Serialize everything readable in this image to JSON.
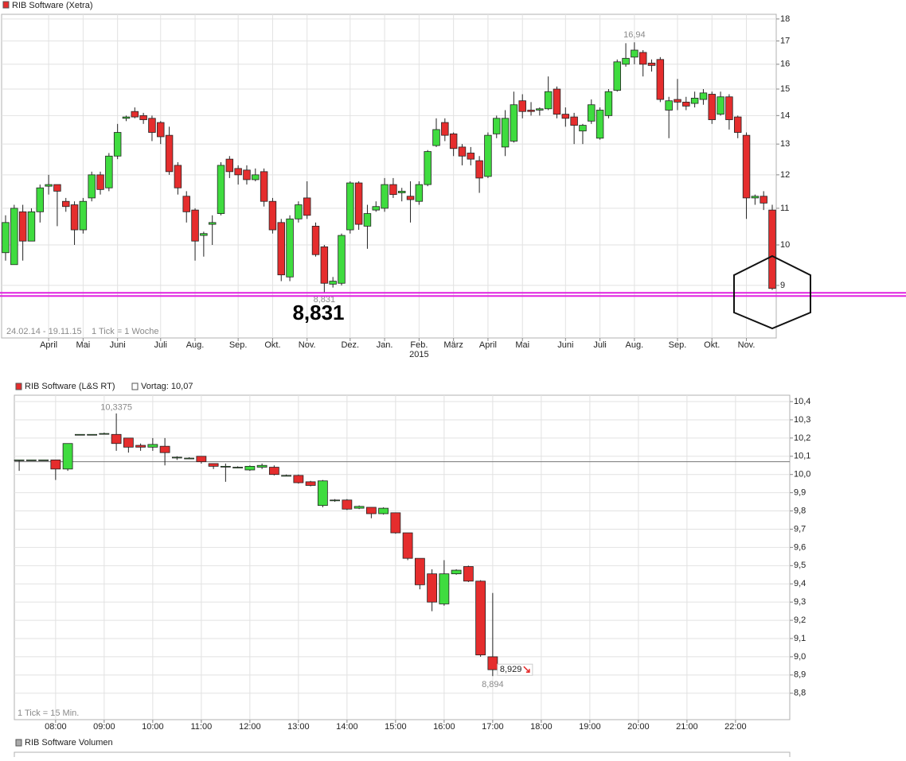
{
  "chart_data": [
    {
      "type": "candlestick",
      "name": "RIB Software (Xetra)",
      "up_color": "#3fdc3f",
      "down_color": "#e52d2d",
      "categories": [
        null,
        null,
        null,
        null,
        null,
        "April",
        null,
        null,
        null,
        "Mai",
        null,
        null,
        null,
        "Juni",
        null,
        null,
        null,
        null,
        "Juli",
        null,
        null,
        null,
        "Aug.",
        null,
        null,
        null,
        null,
        "Sep.",
        null,
        null,
        null,
        "Okt.",
        null,
        null,
        null,
        "Nov.",
        null,
        null,
        null,
        null,
        "Dez.",
        null,
        null,
        null,
        "Jan.",
        null,
        null,
        null,
        "Feb.",
        null,
        null,
        null,
        "März",
        null,
        null,
        null,
        "April",
        null,
        null,
        null,
        "Mai",
        null,
        null,
        null,
        null,
        "Juni",
        null,
        null,
        null,
        "Juli",
        null,
        null,
        null,
        "Aug.",
        null,
        null,
        null,
        null,
        "Sep.",
        null,
        null,
        null,
        "Okt.",
        null,
        null,
        null,
        "Nov.",
        null,
        null,
        null
      ],
      "year_label": "2015",
      "open": [
        9.8,
        9.5,
        10.9,
        10.1,
        10.9,
        11.65,
        11.7,
        11.2,
        11.1,
        10.4,
        11.3,
        12.0,
        11.6,
        12.6,
        13.9,
        14.15,
        14.0,
        13.9,
        13.75,
        13.3,
        12.3,
        11.35,
        10.95,
        10.25,
        10.55,
        10.85,
        12.5,
        12.2,
        12.15,
        11.85,
        12.1,
        11.2,
        10.6,
        9.2,
        10.7,
        11.3,
        10.5,
        9.95,
        9.03,
        9.05,
        10.4,
        11.75,
        10.5,
        10.95,
        11.0,
        11.7,
        11.45,
        11.35,
        11.2,
        11.7,
        12.95,
        13.75,
        13.35,
        12.9,
        12.7,
        12.45,
        11.95,
        13.35,
        12.9,
        13.1,
        14.55,
        14.2,
        14.2,
        14.25,
        15.0,
        14.05,
        13.95,
        13.45,
        13.8,
        13.2,
        14.0,
        14.95,
        16.0,
        16.3,
        16.5,
        16.05,
        16.2,
        14.2,
        14.6,
        14.5,
        14.45,
        14.6,
        14.8,
        14.05,
        14.7,
        13.95,
        13.3,
        11.3,
        11.35,
        10.95
      ],
      "high": [
        10.8,
        11.1,
        11.1,
        11.0,
        11.7,
        12.0,
        11.7,
        11.3,
        11.2,
        11.3,
        12.1,
        12.1,
        12.7,
        13.7,
        14.0,
        14.3,
        14.1,
        14.0,
        13.8,
        13.6,
        12.4,
        11.5,
        11.0,
        10.35,
        10.8,
        12.4,
        12.6,
        12.3,
        12.3,
        12.2,
        12.2,
        11.3,
        10.7,
        10.8,
        11.2,
        11.8,
        10.6,
        10.0,
        9.2,
        10.3,
        11.8,
        11.8,
        11.1,
        11.2,
        11.9,
        11.9,
        11.6,
        11.8,
        11.8,
        12.8,
        13.9,
        13.9,
        13.4,
        13.0,
        12.9,
        12.6,
        13.4,
        14.0,
        14.2,
        14.9,
        14.8,
        14.5,
        14.3,
        15.5,
        15.1,
        14.3,
        14.1,
        13.7,
        14.6,
        14.3,
        15.0,
        16.2,
        16.9,
        16.94,
        16.6,
        16.2,
        16.3,
        14.7,
        15.4,
        14.7,
        14.9,
        15.0,
        14.9,
        14.9,
        14.8,
        14.0,
        13.4,
        11.4,
        11.5,
        11.1
      ],
      "low": [
        9.6,
        9.5,
        9.6,
        10.1,
        10.6,
        11.4,
        10.5,
        10.9,
        10.0,
        10.3,
        11.2,
        11.4,
        11.5,
        12.5,
        13.8,
        13.9,
        13.7,
        13.1,
        13.0,
        12.0,
        11.4,
        10.6,
        9.6,
        9.7,
        10.0,
        10.8,
        11.9,
        11.7,
        11.7,
        11.8,
        11.05,
        10.3,
        9.1,
        9.1,
        10.6,
        10.7,
        9.7,
        8.831,
        8.95,
        9.0,
        10.3,
        10.4,
        9.9,
        10.9,
        10.9,
        11.3,
        11.2,
        10.6,
        11.1,
        11.65,
        12.9,
        13.1,
        12.6,
        12.3,
        12.3,
        11.45,
        11.9,
        13.2,
        12.6,
        13.05,
        13.9,
        14.0,
        14.0,
        14.2,
        13.9,
        13.6,
        13.0,
        13.0,
        13.7,
        13.15,
        13.9,
        14.9,
        15.9,
        16.0,
        15.5,
        15.7,
        14.5,
        13.2,
        14.2,
        14.2,
        14.3,
        14.4,
        13.7,
        14.0,
        13.5,
        13.2,
        10.7,
        11.1,
        10.95,
        8.894
      ],
      "close": [
        10.6,
        11.0,
        10.1,
        10.9,
        11.6,
        11.7,
        11.5,
        11.05,
        10.4,
        11.2,
        12.0,
        11.55,
        12.6,
        13.4,
        13.95,
        13.95,
        13.85,
        13.4,
        13.25,
        12.1,
        11.6,
        10.9,
        10.1,
        10.3,
        10.6,
        12.3,
        12.1,
        12.0,
        11.85,
        12.0,
        11.2,
        10.4,
        9.25,
        10.7,
        11.1,
        10.8,
        9.75,
        9.05,
        9.1,
        10.25,
        11.75,
        10.55,
        10.85,
        11.05,
        11.7,
        11.4,
        11.5,
        11.25,
        11.7,
        12.75,
        13.5,
        13.3,
        12.85,
        12.6,
        12.5,
        11.9,
        13.3,
        13.9,
        13.9,
        14.4,
        14.15,
        14.15,
        14.25,
        14.9,
        14.05,
        13.9,
        13.65,
        13.65,
        14.4,
        14.2,
        14.9,
        16.1,
        16.25,
        16.6,
        16.0,
        15.95,
        14.6,
        14.55,
        14.5,
        14.35,
        14.65,
        14.85,
        13.85,
        14.7,
        13.85,
        13.4,
        11.3,
        11.35,
        11.15,
        8.929
      ],
      "log_scale": true,
      "ylim": [
        7.85,
        18.22
      ],
      "yticks": [
        9,
        10,
        11,
        12,
        13,
        14,
        15,
        16,
        17,
        18
      ],
      "grid": true,
      "high_label": {
        "value": 16.94,
        "label": "16,94"
      },
      "low_label": {
        "value": 8.831,
        "label": "8,831"
      },
      "support_level": 8.8,
      "support_color": "#e022e0",
      "date_range": "24.02.14 - 19.11.15",
      "tick_note": "1 Tick = 1 Woche"
    },
    {
      "type": "candlestick",
      "name": "RIB Software (L&S RT)",
      "up_color": "#3fdc3f",
      "down_color": "#e52d2d",
      "x": [
        435,
        450,
        465,
        480,
        495,
        510,
        525,
        540,
        555,
        570,
        585,
        600,
        615,
        630,
        645,
        660,
        675,
        690,
        705,
        720,
        735,
        750,
        765,
        780,
        795,
        810,
        825,
        840,
        855,
        870,
        885,
        900,
        915,
        930,
        945,
        960,
        975,
        990,
        1005,
        1020
      ],
      "open": [
        10.08,
        10.08,
        10.08,
        10.08,
        10.03,
        10.22,
        10.22,
        10.225,
        10.22,
        10.2,
        10.16,
        10.15,
        10.155,
        10.095,
        10.09,
        10.1,
        10.06,
        10.045,
        10.04,
        10.025,
        10.04,
        10.04,
        9.995,
        9.995,
        9.96,
        9.83,
        9.86,
        9.86,
        9.815,
        9.82,
        9.785,
        9.79,
        9.68,
        9.54,
        9.455,
        9.29,
        9.455,
        9.495,
        9.415,
        9.0
      ],
      "high": [
        10.08,
        10.08,
        10.08,
        10.08,
        10.17,
        10.22,
        10.22,
        10.23,
        10.335,
        10.2,
        10.17,
        10.2,
        10.2,
        10.1,
        10.095,
        10.1,
        10.06,
        10.06,
        10.045,
        10.05,
        10.06,
        10.05,
        10.0,
        10.0,
        9.965,
        9.97,
        9.865,
        9.865,
        9.83,
        9.82,
        9.82,
        9.79,
        9.68,
        9.54,
        9.48,
        9.53,
        9.48,
        9.5,
        9.42,
        9.35
      ],
      "low": [
        10.02,
        10.08,
        10.08,
        9.97,
        10.02,
        10.22,
        10.22,
        10.22,
        10.13,
        10.12,
        10.13,
        10.13,
        10.05,
        10.08,
        10.085,
        10.06,
        10.03,
        9.96,
        10.035,
        10.02,
        10.03,
        9.995,
        9.99,
        9.95,
        9.935,
        9.82,
        9.85,
        9.805,
        9.81,
        9.76,
        9.78,
        9.675,
        9.53,
        9.37,
        9.25,
        9.28,
        9.45,
        9.41,
        9.0,
        8.894
      ],
      "close": [
        10.08,
        10.08,
        10.08,
        10.03,
        10.17,
        10.22,
        10.22,
        10.225,
        10.17,
        10.15,
        10.15,
        10.165,
        10.12,
        10.095,
        10.09,
        10.07,
        10.045,
        10.045,
        10.04,
        10.045,
        10.05,
        10.0,
        9.995,
        9.955,
        9.94,
        9.965,
        9.86,
        9.81,
        9.825,
        9.785,
        9.815,
        9.68,
        9.54,
        9.395,
        9.3,
        9.455,
        9.475,
        9.415,
        9.01,
        8.929
      ],
      "xlim": [
        429,
        1387
      ],
      "xticks": [
        {
          "value": 480,
          "label": "08:00"
        },
        {
          "value": 540,
          "label": "09:00"
        },
        {
          "value": 600,
          "label": "10:00"
        },
        {
          "value": 660,
          "label": "11:00"
        },
        {
          "value": 720,
          "label": "12:00"
        },
        {
          "value": 780,
          "label": "13:00"
        },
        {
          "value": 840,
          "label": "14:00"
        },
        {
          "value": 900,
          "label": "15:00"
        },
        {
          "value": 960,
          "label": "16:00"
        },
        {
          "value": 1020,
          "label": "17:00"
        },
        {
          "value": 1080,
          "label": "18:00"
        },
        {
          "value": 1140,
          "label": "19:00"
        },
        {
          "value": 1200,
          "label": "20:00"
        },
        {
          "value": 1260,
          "label": "21:00"
        },
        {
          "value": 1320,
          "label": "22:00"
        }
      ],
      "ylim": [
        8.655,
        10.435
      ],
      "yticks": [
        {
          "value": 8.8,
          "label": "8,8"
        },
        {
          "value": 8.9,
          "label": "8,9"
        },
        {
          "value": 9.0,
          "label": "9,0"
        },
        {
          "value": 9.1,
          "label": "9,1"
        },
        {
          "value": 9.2,
          "label": "9,2"
        },
        {
          "value": 9.3,
          "label": "9,3"
        },
        {
          "value": 9.4,
          "label": "9,4"
        },
        {
          "value": 9.5,
          "label": "9,5"
        },
        {
          "value": 9.6,
          "label": "9,6"
        },
        {
          "value": 9.7,
          "label": "9,7"
        },
        {
          "value": 9.8,
          "label": "9,8"
        },
        {
          "value": 9.9,
          "label": "9,9"
        },
        {
          "value": 10.0,
          "label": "10,0"
        },
        {
          "value": 10.1,
          "label": "10,1"
        },
        {
          "value": 10.2,
          "label": "10,2"
        },
        {
          "value": 10.3,
          "label": "10,3"
        },
        {
          "value": 10.4,
          "label": "10,4"
        }
      ],
      "grid": true,
      "previous_close": {
        "value": 10.07,
        "label": "Vortag: 10,07"
      },
      "high_label": {
        "value": 10.3375,
        "label": "10,3375"
      },
      "low_label": {
        "value": 8.894,
        "label": "8,894"
      },
      "last_price": {
        "value": 8.929,
        "label": "8,929"
      },
      "tick_note": "1 Tick = 15 Min."
    },
    {
      "type": "volume",
      "name": "RIB Software Volumen"
    }
  ]
}
